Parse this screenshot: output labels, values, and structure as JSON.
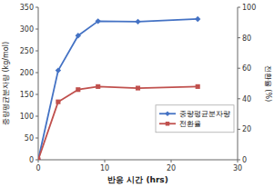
{
  "chart_data": {
    "type": "line",
    "xlabel": "반응 시간 (hrs)",
    "ylabel": "중량평균분자량 (kg/mol)",
    "y2label": "전환율 (%)",
    "x": [
      0,
      3,
      6,
      9,
      15,
      24
    ],
    "series": [
      {
        "name": "중량평균분자량",
        "color": "#4472C4",
        "marker": "diamond",
        "values": [
          0,
          205,
          285,
          318,
          317,
          323
        ]
      },
      {
        "name": "전환율",
        "color": "#C0504D",
        "marker": "square",
        "axis": "y2",
        "values": [
          0,
          38,
          46,
          48,
          47,
          48
        ]
      }
    ],
    "xlim": [
      0,
      30
    ],
    "xticks": [
      0,
      10,
      20,
      30
    ],
    "ylim": [
      0,
      350
    ],
    "yticks": [
      0,
      50,
      100,
      150,
      200,
      250,
      300,
      350
    ],
    "y2lim": [
      0,
      100
    ],
    "y2ticks": [
      0,
      20,
      40,
      60,
      80,
      100
    ],
    "grid": false,
    "legend": "lower right"
  }
}
